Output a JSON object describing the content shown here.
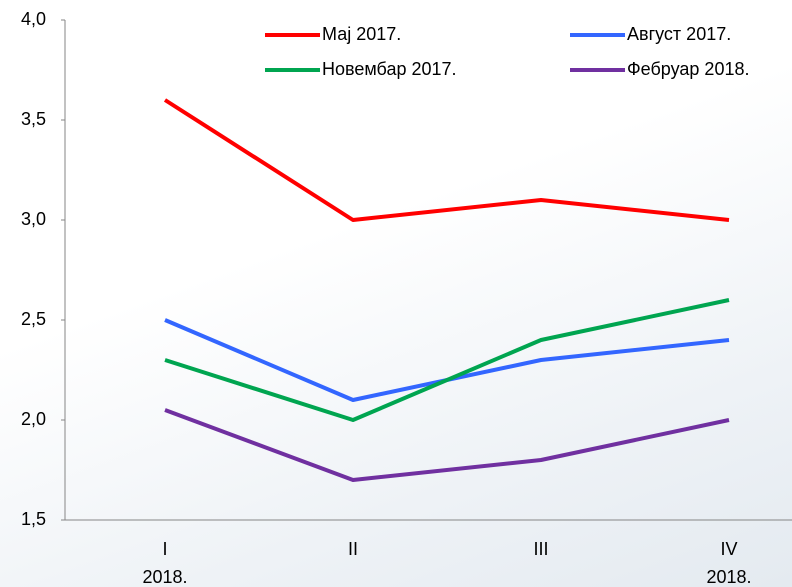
{
  "chart_data": {
    "type": "line",
    "categories": [
      [
        "I",
        "2018."
      ],
      [
        "II"
      ],
      [
        "III"
      ],
      [
        "IV",
        "2018."
      ]
    ],
    "series": [
      {
        "name": "Мај 2017.",
        "color": "#ff0000",
        "values": [
          3.6,
          3.0,
          3.1,
          3.0
        ]
      },
      {
        "name": "Август 2017.",
        "color": "#3366ff",
        "values": [
          2.5,
          2.1,
          2.3,
          2.4
        ]
      },
      {
        "name": "Новембар 2017.",
        "color": "#00a550",
        "values": [
          2.3,
          2.0,
          2.4,
          2.6
        ]
      },
      {
        "name": "Фебруар 2018.",
        "color": "#7030a0",
        "values": [
          2.05,
          1.7,
          1.8,
          2.0
        ]
      }
    ],
    "ylim": [
      1.5,
      4.0
    ],
    "yticks": [
      {
        "value": 1.5,
        "label": "1,5"
      },
      {
        "value": 2.0,
        "label": "2,0"
      },
      {
        "value": 2.5,
        "label": "2,5"
      },
      {
        "value": 3.0,
        "label": "3,0"
      },
      {
        "value": 3.5,
        "label": "3,5"
      },
      {
        "value": 4.0,
        "label": "4,0"
      }
    ],
    "grid": false,
    "legend": "top"
  }
}
